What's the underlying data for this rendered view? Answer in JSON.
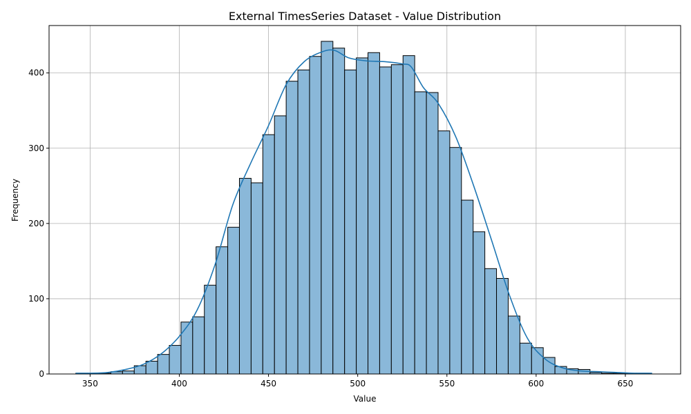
{
  "chart_data": {
    "type": "bar",
    "title": "External TimesSeries Dataset - Value Distribution",
    "xlabel": "Value",
    "ylabel": "Frequency",
    "xlim": [
      327,
      681
    ],
    "ylim": [
      0,
      463
    ],
    "xticks": [
      350,
      400,
      450,
      500,
      550,
      600,
      650
    ],
    "yticks": [
      0,
      100,
      200,
      300,
      400
    ],
    "grid": true,
    "colors": {
      "bar_fill": "#8ab8d9",
      "bar_edge": "#000000",
      "kde_line": "#1f77b4",
      "grid": "#b0b0b0"
    },
    "bins": {
      "start": 342.0,
      "width": 6.55,
      "counts": [
        1,
        1,
        1,
        3,
        4,
        11,
        17,
        26,
        38,
        69,
        76,
        118,
        169,
        195,
        260,
        254,
        318,
        343,
        389,
        404,
        422,
        442,
        433,
        404,
        420,
        427,
        408,
        411,
        423,
        375,
        374,
        323,
        301,
        231,
        189,
        140,
        127,
        77,
        41,
        35,
        22,
        10,
        7,
        6,
        2,
        1,
        1,
        1,
        1
      ]
    },
    "kde": {
      "x": [
        342,
        350,
        360,
        370,
        380,
        390,
        400,
        410,
        420,
        430,
        440,
        450,
        460,
        470,
        480,
        487,
        495,
        505,
        515,
        525,
        530,
        537,
        545,
        555,
        565,
        575,
        585,
        595,
        605,
        615,
        625,
        635,
        645,
        655,
        665
      ],
      "y": [
        1,
        1,
        2,
        6,
        13,
        27,
        50,
        85,
        145,
        225,
        280,
        330,
        385,
        415,
        428,
        430,
        420,
        416,
        415,
        412,
        408,
        380,
        360,
        315,
        250,
        178,
        105,
        48,
        20,
        8,
        4,
        3,
        2,
        1,
        1
      ]
    }
  }
}
